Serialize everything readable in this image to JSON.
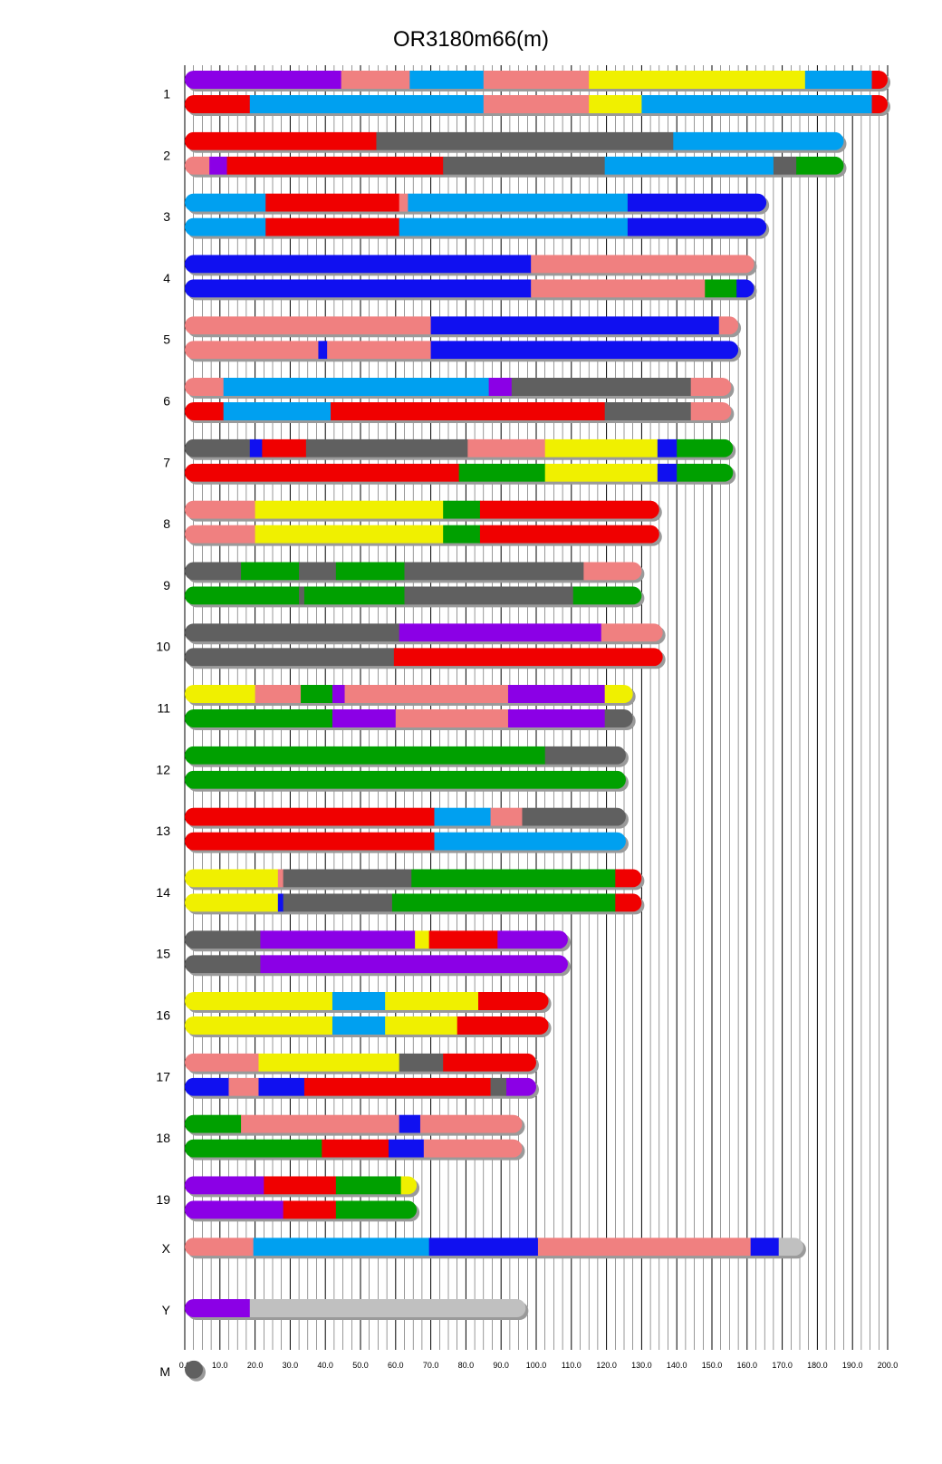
{
  "chart_data": {
    "type": "bar",
    "title": "OR3180m66(m)",
    "xlabel": "",
    "ylabel": "",
    "xlim": [
      0,
      200
    ],
    "x_ticks": [
      "0.0",
      "10.0",
      "20.0",
      "30.0",
      "40.0",
      "50.0",
      "60.0",
      "70.0",
      "80.0",
      "90.0",
      "100.0",
      "110.0",
      "120.0",
      "130.0",
      "140.0",
      "150.0",
      "160.0",
      "170.0",
      "180.0",
      "190.0",
      "200.0"
    ],
    "grid": "vertical lines every 2.5 units",
    "colors": {
      "purple": "#8b00e6",
      "salmon": "#f08080",
      "blue_light": "#00a0f0",
      "yellow": "#f0f000",
      "red": "#f00000",
      "gray": "#606060",
      "blue": "#1010f0",
      "green": "#00a000",
      "lightgray": "#c0c0c0"
    },
    "chromosomes": [
      {
        "name": "1",
        "haplotypes": [
          [
            [
              0,
              44.5,
              "purple"
            ],
            [
              44.5,
              64,
              "salmon"
            ],
            [
              64,
              85,
              "blue_light"
            ],
            [
              85,
              115,
              "salmon"
            ],
            [
              115,
              176.5,
              "yellow"
            ],
            [
              176.5,
              195.5,
              "blue_light"
            ],
            [
              195.5,
              200,
              "red"
            ]
          ],
          [
            [
              0,
              18.5,
              "red"
            ],
            [
              18.5,
              85,
              "blue_light"
            ],
            [
              85,
              115,
              "salmon"
            ],
            [
              115,
              130,
              "yellow"
            ],
            [
              130,
              195.5,
              "blue_light"
            ],
            [
              195.5,
              200,
              "red"
            ]
          ]
        ]
      },
      {
        "name": "2",
        "haplotypes": [
          [
            [
              0,
              54.5,
              "red"
            ],
            [
              54.5,
              139,
              "gray"
            ],
            [
              139,
              187.5,
              "blue_light"
            ]
          ],
          [
            [
              0,
              7,
              "salmon"
            ],
            [
              7,
              12,
              "purple"
            ],
            [
              12,
              73.5,
              "red"
            ],
            [
              73.5,
              119.5,
              "gray"
            ],
            [
              119.5,
              167.5,
              "blue_light"
            ],
            [
              167.5,
              174,
              "gray"
            ],
            [
              174,
              187.5,
              "green"
            ]
          ]
        ]
      },
      {
        "name": "3",
        "haplotypes": [
          [
            [
              0,
              23,
              "blue_light"
            ],
            [
              23,
              61,
              "red"
            ],
            [
              61,
              63.5,
              "salmon"
            ],
            [
              63.5,
              126,
              "blue_light"
            ],
            [
              126,
              165.5,
              "blue"
            ]
          ],
          [
            [
              0,
              23,
              "blue_light"
            ],
            [
              23,
              61,
              "red"
            ],
            [
              61,
              126,
              "blue_light"
            ],
            [
              126,
              165.5,
              "blue"
            ]
          ]
        ]
      },
      {
        "name": "4",
        "haplotypes": [
          [
            [
              0,
              98.5,
              "blue"
            ],
            [
              98.5,
              162,
              "salmon"
            ]
          ],
          [
            [
              0,
              98.5,
              "blue"
            ],
            [
              98.5,
              148,
              "salmon"
            ],
            [
              148,
              157,
              "green"
            ],
            [
              157,
              162,
              "blue"
            ]
          ]
        ]
      },
      {
        "name": "5",
        "haplotypes": [
          [
            [
              0,
              70,
              "salmon"
            ],
            [
              70,
              152,
              "blue"
            ],
            [
              152,
              157.5,
              "salmon"
            ]
          ],
          [
            [
              0,
              38,
              "salmon"
            ],
            [
              38,
              39.5,
              "blue"
            ],
            [
              39.5,
              40.5,
              "blue"
            ],
            [
              40.5,
              70,
              "salmon"
            ],
            [
              70,
              157.5,
              "blue"
            ]
          ]
        ]
      },
      {
        "name": "6",
        "haplotypes": [
          [
            [
              0,
              11,
              "salmon"
            ],
            [
              11,
              86.5,
              "blue_light"
            ],
            [
              86.5,
              93,
              "purple"
            ],
            [
              93,
              144,
              "gray"
            ],
            [
              144,
              155.5,
              "salmon"
            ]
          ],
          [
            [
              0,
              11,
              "red"
            ],
            [
              11,
              41.5,
              "blue_light"
            ],
            [
              41.5,
              119.5,
              "red"
            ],
            [
              119.5,
              144,
              "gray"
            ],
            [
              144,
              155.5,
              "salmon"
            ]
          ]
        ]
      },
      {
        "name": "7",
        "haplotypes": [
          [
            [
              0,
              18.5,
              "gray"
            ],
            [
              18.5,
              22,
              "blue"
            ],
            [
              22,
              34.5,
              "red"
            ],
            [
              34.5,
              80.5,
              "gray"
            ],
            [
              80.5,
              102.5,
              "salmon"
            ],
            [
              102.5,
              134.5,
              "yellow"
            ],
            [
              134.5,
              140,
              "blue"
            ],
            [
              140,
              156,
              "green"
            ]
          ],
          [
            [
              0,
              78,
              "red"
            ],
            [
              78,
              102.5,
              "green"
            ],
            [
              102.5,
              134.5,
              "yellow"
            ],
            [
              134.5,
              140,
              "blue"
            ],
            [
              140,
              156,
              "green"
            ]
          ]
        ]
      },
      {
        "name": "8",
        "haplotypes": [
          [
            [
              0,
              20,
              "salmon"
            ],
            [
              20,
              73.5,
              "yellow"
            ],
            [
              73.5,
              84,
              "green"
            ],
            [
              84,
              135,
              "red"
            ]
          ],
          [
            [
              0,
              20,
              "salmon"
            ],
            [
              20,
              73.5,
              "yellow"
            ],
            [
              73.5,
              84,
              "green"
            ],
            [
              84,
              135,
              "red"
            ]
          ]
        ]
      },
      {
        "name": "9",
        "haplotypes": [
          [
            [
              0,
              16,
              "gray"
            ],
            [
              16,
              32.5,
              "green"
            ],
            [
              32.5,
              43,
              "gray"
            ],
            [
              43,
              62.5,
              "green"
            ],
            [
              62.5,
              113.5,
              "gray"
            ],
            [
              113.5,
              130,
              "salmon"
            ]
          ],
          [
            [
              0,
              32.5,
              "green"
            ],
            [
              32.5,
              34,
              "gray"
            ],
            [
              34,
              62.5,
              "green"
            ],
            [
              62.5,
              110.5,
              "gray"
            ],
            [
              110.5,
              130,
              "green"
            ]
          ]
        ]
      },
      {
        "name": "10",
        "haplotypes": [
          [
            [
              0,
              61,
              "gray"
            ],
            [
              61,
              118.5,
              "purple"
            ],
            [
              118.5,
              136,
              "salmon"
            ]
          ],
          [
            [
              0,
              59.5,
              "gray"
            ],
            [
              59.5,
              136,
              "red"
            ]
          ]
        ]
      },
      {
        "name": "11",
        "haplotypes": [
          [
            [
              0,
              20,
              "yellow"
            ],
            [
              20,
              33,
              "salmon"
            ],
            [
              33,
              42,
              "green"
            ],
            [
              42,
              45.5,
              "purple"
            ],
            [
              45.5,
              92,
              "salmon"
            ],
            [
              92,
              119.5,
              "purple"
            ],
            [
              119.5,
              127.5,
              "yellow"
            ]
          ],
          [
            [
              0,
              42,
              "green"
            ],
            [
              42,
              60,
              "purple"
            ],
            [
              60,
              92,
              "salmon"
            ],
            [
              92,
              119.5,
              "purple"
            ],
            [
              119.5,
              127.5,
              "gray"
            ]
          ]
        ]
      },
      {
        "name": "12",
        "haplotypes": [
          [
            [
              0,
              102.5,
              "green"
            ],
            [
              102.5,
              125.5,
              "gray"
            ]
          ],
          [
            [
              0,
              125.5,
              "green"
            ]
          ]
        ]
      },
      {
        "name": "13",
        "haplotypes": [
          [
            [
              0,
              71,
              "red"
            ],
            [
              71,
              87,
              "blue_light"
            ],
            [
              87,
              96,
              "salmon"
            ],
            [
              96,
              125.5,
              "gray"
            ]
          ],
          [
            [
              0,
              71,
              "red"
            ],
            [
              71,
              125.5,
              "blue_light"
            ]
          ]
        ]
      },
      {
        "name": "14",
        "haplotypes": [
          [
            [
              0,
              26.5,
              "yellow"
            ],
            [
              26.5,
              28,
              "salmon"
            ],
            [
              28,
              64.5,
              "gray"
            ],
            [
              64.5,
              122.5,
              "green"
            ],
            [
              122.5,
              130,
              "red"
            ]
          ],
          [
            [
              0,
              26.5,
              "yellow"
            ],
            [
              26.5,
              28,
              "blue"
            ],
            [
              28,
              59,
              "gray"
            ],
            [
              59,
              122.5,
              "green"
            ],
            [
              122.5,
              130,
              "red"
            ]
          ]
        ]
      },
      {
        "name": "15",
        "haplotypes": [
          [
            [
              0,
              21.5,
              "gray"
            ],
            [
              21.5,
              65.5,
              "purple"
            ],
            [
              65.5,
              69.5,
              "yellow"
            ],
            [
              69.5,
              89,
              "red"
            ],
            [
              89,
              109,
              "purple"
            ]
          ],
          [
            [
              0,
              21.5,
              "gray"
            ],
            [
              21.5,
              109,
              "purple"
            ]
          ]
        ]
      },
      {
        "name": "16",
        "haplotypes": [
          [
            [
              0,
              42,
              "yellow"
            ],
            [
              42,
              57,
              "blue_light"
            ],
            [
              57,
              83.5,
              "yellow"
            ],
            [
              83.5,
              103.5,
              "red"
            ]
          ],
          [
            [
              0,
              42,
              "yellow"
            ],
            [
              42,
              57,
              "blue_light"
            ],
            [
              57,
              77.5,
              "yellow"
            ],
            [
              77.5,
              103.5,
              "red"
            ]
          ]
        ]
      },
      {
        "name": "17",
        "haplotypes": [
          [
            [
              0,
              21,
              "salmon"
            ],
            [
              21,
              61,
              "yellow"
            ],
            [
              61,
              73.5,
              "gray"
            ],
            [
              73.5,
              100,
              "red"
            ]
          ],
          [
            [
              0,
              12.5,
              "blue"
            ],
            [
              12.5,
              21,
              "salmon"
            ],
            [
              21,
              34,
              "blue"
            ],
            [
              34,
              87,
              "red"
            ],
            [
              87,
              91.5,
              "gray"
            ],
            [
              91.5,
              100,
              "purple"
            ]
          ]
        ]
      },
      {
        "name": "18",
        "haplotypes": [
          [
            [
              0,
              16,
              "green"
            ],
            [
              16,
              61,
              "salmon"
            ],
            [
              61,
              67,
              "blue"
            ],
            [
              67,
              96,
              "salmon"
            ]
          ],
          [
            [
              0,
              39,
              "green"
            ],
            [
              39,
              58,
              "red"
            ],
            [
              58,
              68,
              "blue"
            ],
            [
              68,
              96,
              "salmon"
            ]
          ]
        ]
      },
      {
        "name": "19",
        "haplotypes": [
          [
            [
              0,
              22.5,
              "purple"
            ],
            [
              22.5,
              43,
              "red"
            ],
            [
              43,
              61.5,
              "green"
            ],
            [
              61.5,
              66,
              "yellow"
            ]
          ],
          [
            [
              0,
              28,
              "purple"
            ],
            [
              28,
              43,
              "red"
            ],
            [
              43,
              66,
              "green"
            ]
          ]
        ]
      },
      {
        "name": "X",
        "haplotypes": [
          [
            [
              0,
              19.5,
              "salmon"
            ],
            [
              19.5,
              69.5,
              "blue_light"
            ],
            [
              69.5,
              100.5,
              "blue"
            ],
            [
              100.5,
              161,
              "salmon"
            ],
            [
              161,
              169,
              "blue"
            ],
            [
              169,
              176,
              "lightgray"
            ]
          ]
        ]
      },
      {
        "name": "Y",
        "haplotypes": [
          [
            [
              0,
              18.5,
              "purple"
            ],
            [
              18.5,
              97,
              "lightgray"
            ]
          ]
        ]
      },
      {
        "name": "M",
        "haplotypes": [
          [
            [
              0,
              2.5,
              "gray"
            ]
          ]
        ]
      }
    ]
  }
}
